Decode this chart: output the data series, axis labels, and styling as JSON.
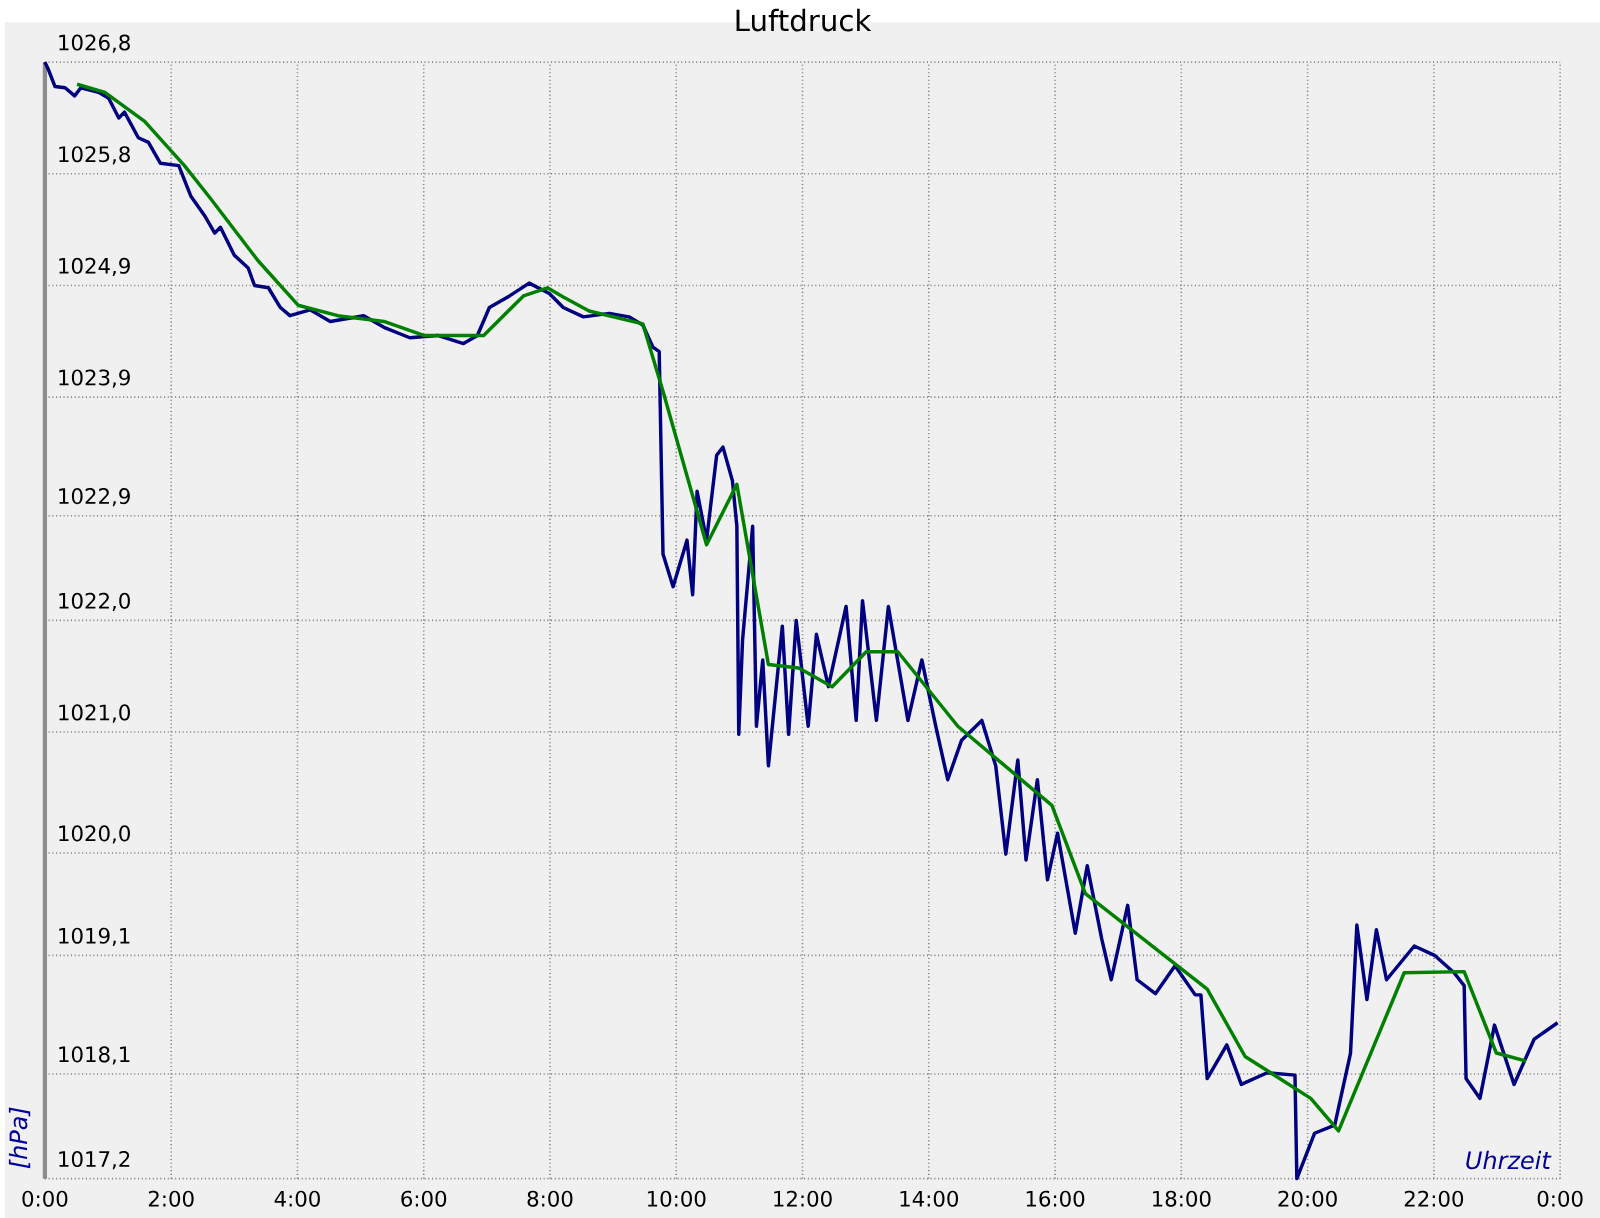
{
  "chart_data": {
    "type": "line",
    "title": "Luftdruck",
    "xlabel": "Uhrzeit",
    "ylabel": "[hPa]",
    "xlim": [
      0,
      24
    ],
    "ylim": [
      1017.2,
      1026.8
    ],
    "xticks": [
      {
        "value": 0,
        "label": "0:00"
      },
      {
        "value": 2,
        "label": "2:00"
      },
      {
        "value": 4,
        "label": "4:00"
      },
      {
        "value": 6,
        "label": "6:00"
      },
      {
        "value": 8,
        "label": "8:00"
      },
      {
        "value": 10,
        "label": "10:00"
      },
      {
        "value": 12,
        "label": "12:00"
      },
      {
        "value": 14,
        "label": "14:00"
      },
      {
        "value": 16,
        "label": "16:00"
      },
      {
        "value": 18,
        "label": "18:00"
      },
      {
        "value": 20,
        "label": "20:00"
      },
      {
        "value": 22,
        "label": "22:00"
      },
      {
        "value": 24,
        "label": "0:00"
      }
    ],
    "yticks": [
      {
        "value": 1017.2,
        "label": "1017,2"
      },
      {
        "value": 1018.1,
        "label": "1018,1"
      },
      {
        "value": 1019.12,
        "label": "1019,1"
      },
      {
        "value": 1020.0,
        "label": "1020,0"
      },
      {
        "value": 1021.04,
        "label": "1021,0"
      },
      {
        "value": 1022.0,
        "label": "1022,0"
      },
      {
        "value": 1022.9,
        "label": "1022,9"
      },
      {
        "value": 1023.92,
        "label": "1023,9"
      },
      {
        "value": 1024.88,
        "label": "1024,9"
      },
      {
        "value": 1025.84,
        "label": "1025,8"
      },
      {
        "value": 1026.8,
        "label": "1026,8"
      }
    ],
    "grid": true,
    "series": [
      {
        "color": "#000080",
        "x": [
          0,
          0.06,
          0.16,
          0.32,
          0.47,
          0.57,
          0.85,
          1.01,
          1.17,
          1.26,
          1.48,
          1.64,
          1.83,
          2.12,
          2.31,
          2.53,
          2.69,
          2.78,
          3.0,
          3.22,
          3.32,
          3.54,
          3.73,
          3.88,
          4.2,
          4.52,
          5.05,
          5.37,
          5.78,
          6.22,
          6.63,
          6.85,
          7.04,
          7.36,
          7.67,
          7.99,
          8.21,
          8.53,
          8.94,
          9.25,
          9.47,
          9.63,
          9.73,
          9.79,
          9.95,
          10.17,
          10.26,
          10.33,
          10.48,
          10.64,
          10.74,
          10.89,
          10.96,
          10.99,
          11.05,
          11.21,
          11.27,
          11.37,
          11.46,
          11.68,
          11.78,
          11.9,
          12.09,
          12.22,
          12.41,
          12.69,
          12.85,
          12.95,
          13.17,
          13.36,
          13.67,
          13.89,
          14.11,
          14.3,
          14.52,
          14.84,
          15.06,
          15.22,
          15.41,
          15.54,
          15.72,
          15.88,
          16.04,
          16.32,
          16.51,
          16.74,
          16.89,
          17.15,
          17.3,
          17.59,
          17.9,
          18.22,
          18.31,
          18.41,
          18.72,
          18.95,
          19.36,
          19.8,
          19.83,
          20.11,
          20.43,
          20.68,
          20.78,
          20.94,
          21.09,
          21.25,
          21.69,
          22.01,
          22.32,
          22.48,
          22.51,
          22.73,
          22.96,
          23.27,
          23.59,
          23.96
        ],
        "values": [
          1026.8,
          1026.73,
          1026.59,
          1026.58,
          1026.51,
          1026.58,
          1026.54,
          1026.49,
          1026.32,
          1026.37,
          1026.15,
          1026.11,
          1025.93,
          1025.91,
          1025.65,
          1025.48,
          1025.33,
          1025.38,
          1025.14,
          1025.03,
          1024.88,
          1024.86,
          1024.69,
          1024.62,
          1024.67,
          1024.57,
          1024.62,
          1024.52,
          1024.43,
          1024.45,
          1024.38,
          1024.45,
          1024.69,
          1024.79,
          1024.9,
          1024.81,
          1024.69,
          1024.61,
          1024.64,
          1024.61,
          1024.54,
          1024.35,
          1024.31,
          1022.57,
          1022.29,
          1022.69,
          1022.22,
          1023.11,
          1022.69,
          1023.42,
          1023.49,
          1023.2,
          1022.81,
          1021.02,
          1021.83,
          1022.81,
          1021.09,
          1021.66,
          1020.75,
          1021.95,
          1021.02,
          1022.0,
          1021.09,
          1021.88,
          1021.43,
          1022.12,
          1021.14,
          1022.17,
          1021.14,
          1022.12,
          1021.14,
          1021.66,
          1021.09,
          1020.63,
          1020.97,
          1021.14,
          1020.75,
          1019.99,
          1020.8,
          1019.94,
          1020.63,
          1019.77,
          1020.17,
          1019.31,
          1019.89,
          1019.26,
          1018.91,
          1019.55,
          1018.91,
          1018.79,
          1019.03,
          1018.78,
          1018.78,
          1018.06,
          1018.35,
          1018.01,
          1018.11,
          1018.09,
          1017.2,
          1017.59,
          1017.66,
          1018.28,
          1019.38,
          1018.74,
          1019.34,
          1018.91,
          1019.2,
          1019.12,
          1018.97,
          1018.86,
          1018.06,
          1017.89,
          1018.52,
          1018.01,
          1018.4,
          1018.54
        ]
      },
      {
        "color": "#008000",
        "x": [
          0.51,
          0.95,
          1.58,
          2.21,
          2.62,
          3.38,
          4.01,
          4.64,
          5.37,
          6.0,
          6.95,
          7.58,
          7.96,
          8.21,
          8.62,
          9.47,
          9.79,
          10.48,
          10.96,
          11.46,
          11.94,
          12.47,
          13.01,
          13.51,
          14.46,
          15.16,
          15.95,
          16.48,
          18.41,
          19.01,
          20.05,
          20.49,
          21.53,
          22.48,
          22.99,
          23.46
        ],
        "values": [
          1026.61,
          1026.54,
          1026.29,
          1025.91,
          1025.63,
          1025.09,
          1024.71,
          1024.62,
          1024.57,
          1024.45,
          1024.45,
          1024.79,
          1024.86,
          1024.78,
          1024.66,
          1024.55,
          1023.97,
          1022.65,
          1023.17,
          1021.62,
          1021.59,
          1021.43,
          1021.73,
          1021.73,
          1021.09,
          1020.77,
          1020.41,
          1019.65,
          1018.83,
          1018.25,
          1017.89,
          1017.61,
          1018.97,
          1018.98,
          1018.28,
          1018.21
        ]
      }
    ]
  }
}
